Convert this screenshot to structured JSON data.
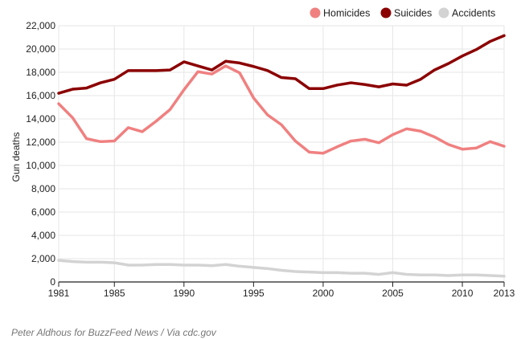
{
  "chart_data": {
    "type": "line",
    "ylabel": "Gun deaths",
    "xlim": [
      1981,
      2013
    ],
    "ylim": [
      0,
      22000
    ],
    "x_ticks": [
      "1981",
      "1985",
      "1990",
      "1995",
      "2000",
      "2005",
      "2010",
      "2013"
    ],
    "y_ticks": [
      "0",
      "2,000",
      "4,000",
      "6,000",
      "8,000",
      "10,000",
      "12,000",
      "14,000",
      "16,000",
      "18,000",
      "20,000",
      "22,000"
    ],
    "grid": true,
    "legend_position": "top-right",
    "x": [
      1981,
      1982,
      1983,
      1984,
      1985,
      1986,
      1987,
      1988,
      1989,
      1990,
      1991,
      1992,
      1993,
      1994,
      1995,
      1996,
      1997,
      1998,
      1999,
      2000,
      2001,
      2002,
      2003,
      2004,
      2005,
      2006,
      2007,
      2008,
      2009,
      2010,
      2011,
      2012,
      2013
    ],
    "series": [
      {
        "name": "Homicides",
        "color": "#f08080",
        "values": [
          15300,
          14100,
          12300,
          12050,
          12100,
          13250,
          12900,
          13800,
          14800,
          16500,
          18050,
          17850,
          18550,
          17950,
          15800,
          14350,
          13500,
          12100,
          11150,
          11050,
          11600,
          12100,
          12250,
          11950,
          12650,
          13150,
          12950,
          12450,
          11800,
          11400,
          11500,
          12050,
          11650
        ]
      },
      {
        "name": "Suicides",
        "color": "#8b0000",
        "values": [
          16200,
          16550,
          16650,
          17100,
          17400,
          18150,
          18150,
          18150,
          18200,
          18900,
          18550,
          18200,
          18950,
          18800,
          18500,
          18150,
          17550,
          17450,
          16600,
          16600,
          16900,
          17100,
          16950,
          16750,
          17000,
          16900,
          17400,
          18200,
          18750,
          19400,
          19950,
          20650,
          21150
        ]
      },
      {
        "name": "Accidents",
        "color": "#d3d3d3",
        "values": [
          1850,
          1750,
          1700,
          1700,
          1650,
          1450,
          1450,
          1500,
          1500,
          1450,
          1450,
          1400,
          1500,
          1350,
          1250,
          1150,
          1000,
          900,
          850,
          800,
          800,
          750,
          750,
          650,
          800,
          650,
          600,
          600,
          550,
          600,
          600,
          550,
          500
        ]
      }
    ]
  },
  "credit": "Peter Aldhous for BuzzFeed News / Via cdc.gov"
}
